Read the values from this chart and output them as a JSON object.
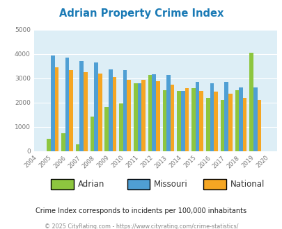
{
  "title": "Adrian Property Crime Index",
  "years": [
    2004,
    2005,
    2006,
    2007,
    2008,
    2009,
    2010,
    2011,
    2012,
    2013,
    2014,
    2015,
    2016,
    2017,
    2018,
    2019,
    2020
  ],
  "adrian": [
    null,
    500,
    740,
    290,
    1410,
    1820,
    1970,
    2800,
    3150,
    2520,
    2490,
    2590,
    2190,
    2120,
    2500,
    4050,
    null
  ],
  "missouri": [
    null,
    3950,
    3840,
    3720,
    3650,
    3370,
    3350,
    2800,
    3160,
    3140,
    2490,
    2860,
    2810,
    2840,
    2620,
    2620,
    null
  ],
  "national": [
    null,
    3440,
    3330,
    3240,
    3200,
    3040,
    2950,
    2930,
    2870,
    2730,
    2590,
    2480,
    2450,
    2360,
    2190,
    2120,
    null
  ],
  "adrian_color": "#8dc63f",
  "missouri_color": "#4f9fd4",
  "national_color": "#f5a623",
  "bg_color": "#ddeef6",
  "ylim": [
    0,
    5000
  ],
  "yticks": [
    0,
    1000,
    2000,
    3000,
    4000,
    5000
  ],
  "subtitle": "Crime Index corresponds to incidents per 100,000 inhabitants",
  "footer": "© 2025 CityRating.com - https://www.cityrating.com/crime-statistics/",
  "legend_labels": [
    "Adrian",
    "Missouri",
    "National"
  ],
  "title_color": "#1a7ab5",
  "subtitle_color": "#222222",
  "footer_color": "#888888"
}
